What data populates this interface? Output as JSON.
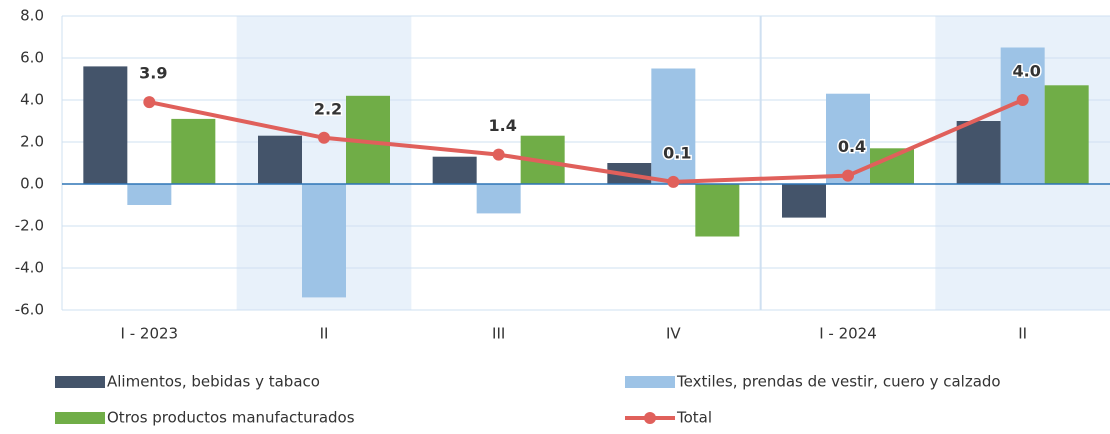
{
  "chart_data": {
    "type": "bar_line",
    "categories": [
      "I - 2023",
      "II",
      "III",
      "IV",
      "I - 2024",
      "II"
    ],
    "series": [
      {
        "name": "Alimentos, bebidas y tabaco",
        "type": "bar",
        "color": "#44546a",
        "values": [
          5.6,
          2.3,
          1.3,
          1.0,
          -1.6,
          3.0
        ]
      },
      {
        "name": "Textiles, prendas de vestir, cuero y calzado",
        "type": "bar",
        "color": "#9dc3e6",
        "values": [
          -1.0,
          -5.4,
          -1.4,
          5.5,
          4.3,
          6.5
        ]
      },
      {
        "name": "Otros productos manufacturados",
        "type": "bar",
        "color": "#70ad47",
        "values": [
          3.1,
          4.2,
          2.3,
          -2.5,
          1.7,
          4.7
        ]
      },
      {
        "name": "Total",
        "type": "line",
        "color": "#e0605b",
        "values": [
          3.9,
          2.2,
          1.4,
          0.1,
          0.4,
          4.0
        ],
        "value_labels": [
          "3.9",
          "2.2",
          "1.4",
          "0.1",
          "0.4",
          "4.0"
        ]
      }
    ],
    "ylim": [
      -6,
      8
    ],
    "yticks": [
      {
        "value": -6,
        "label": "-6.0"
      },
      {
        "value": -4,
        "label": "-4.0"
      },
      {
        "value": -2,
        "label": "-2.0"
      },
      {
        "value": 0,
        "label": "0.0"
      },
      {
        "value": 2,
        "label": "2.0"
      },
      {
        "value": 4,
        "label": "4.0"
      },
      {
        "value": 6,
        "label": "6.0"
      },
      {
        "value": 8,
        "label": "8.0"
      }
    ],
    "shaded_categories": [
      1,
      5
    ],
    "grid": true
  }
}
